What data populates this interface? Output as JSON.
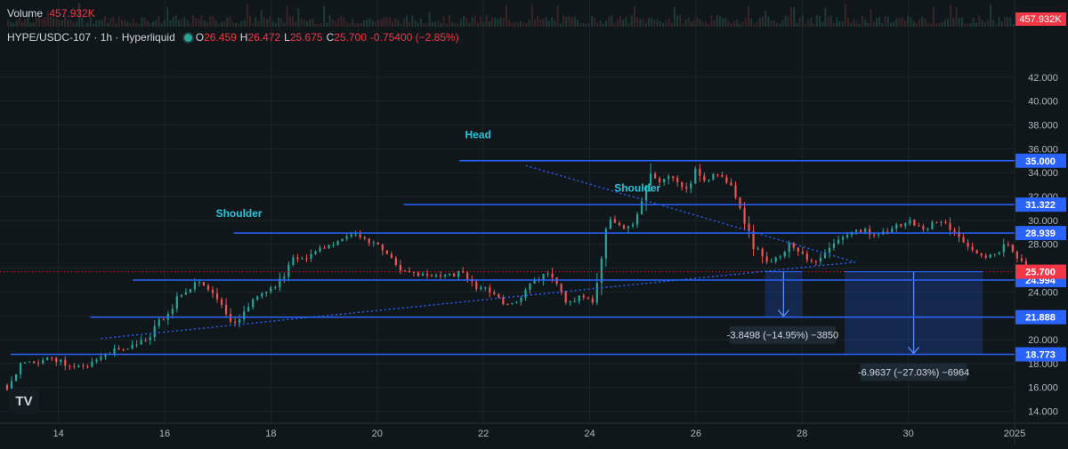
{
  "volume": {
    "label": "Volume",
    "value": "457.932K"
  },
  "symbol": {
    "title": "HYPE/USDC-107 · 1h · Hyperliquid",
    "open_label": "O",
    "open": "26.459",
    "high_label": "H",
    "high": "26.472",
    "low_label": "L",
    "low": "25.675",
    "close_label": "C",
    "close": "25.700",
    "change": "-0.75400 (−2.85%)"
  },
  "logo_text": "TV",
  "colors": {
    "background": "#0f171b",
    "up": "#26a69a",
    "down": "#ef5350",
    "level_line": "#2962ff",
    "annotation_text": "#26c6da",
    "last_price": "#f23645"
  },
  "chart_data": {
    "type": "candlestick",
    "x_ticks": [
      "14",
      "16",
      "18",
      "20",
      "22",
      "24",
      "26",
      "28",
      "30",
      "2025"
    ],
    "y_ticks": [
      "14.000",
      "16.000",
      "18.000",
      "20.000",
      "22.000",
      "24.000",
      "26.000",
      "28.000",
      "30.000",
      "32.000",
      "34.000",
      "36.000",
      "38.000",
      "40.000",
      "42.000"
    ],
    "ylim": [
      13,
      44
    ],
    "x_range_days": [
      12.9,
      32.0
    ],
    "year_tick": {
      "label": "2025",
      "day": 32
    },
    "last_price": "25.700",
    "volume_axis_label": "457.932K",
    "levels": [
      {
        "value": "35.000",
        "x_start_day": 21.55
      },
      {
        "value": "31.322",
        "x_start_day": 20.5
      },
      {
        "value": "28.939",
        "x_start_day": 17.3
      },
      {
        "value": "24.994",
        "x_start_day": 15.4
      },
      {
        "value": "21.888",
        "x_start_day": 14.6
      },
      {
        "value": "18.773",
        "x_start_day": 13.1
      }
    ],
    "annotations": [
      {
        "text": "Shoulder",
        "day": 17.4,
        "price": 30.3
      },
      {
        "text": "Head",
        "day": 21.9,
        "price": 36.9
      },
      {
        "text": "Shoulder",
        "day": 24.9,
        "price": 32.4
      }
    ],
    "trendlines": [
      {
        "from": {
          "day": 14.8,
          "price": 20.1
        },
        "to": {
          "day": 29.0,
          "price": 26.5
        }
      },
      {
        "from": {
          "day": 22.8,
          "price": 34.6
        },
        "to": {
          "day": 29.0,
          "price": 26.5
        }
      }
    ],
    "measures": [
      {
        "label": "-3.8498 (−14.95%) −3850",
        "from_day": 27.3,
        "to_day": 28.0,
        "from_price": 25.7,
        "to_price": 21.888
      },
      {
        "label": "-6.9637 (−27.03%) −6964",
        "from_day": 28.8,
        "to_day": 31.4,
        "from_price": 25.7,
        "to_price": 18.773
      }
    ],
    "price_path": [
      [
        12.95,
        16.2
      ],
      [
        13.05,
        16.0
      ],
      [
        13.2,
        17.4
      ],
      [
        13.35,
        18.1
      ],
      [
        13.6,
        18.2
      ],
      [
        13.9,
        18.4
      ],
      [
        14.15,
        18.0
      ],
      [
        14.4,
        17.7
      ],
      [
        14.6,
        18.0
      ],
      [
        14.8,
        18.4
      ],
      [
        14.95,
        18.9
      ],
      [
        15.1,
        19.2
      ],
      [
        15.3,
        19.3
      ],
      [
        15.5,
        19.8
      ],
      [
        15.7,
        20.0
      ],
      [
        15.8,
        21.4
      ],
      [
        16.0,
        21.6
      ],
      [
        16.2,
        23.2
      ],
      [
        16.45,
        24.3
      ],
      [
        16.6,
        24.7
      ],
      [
        16.8,
        24.5
      ],
      [
        17.0,
        23.0
      ],
      [
        17.2,
        21.7
      ],
      [
        17.35,
        21.3
      ],
      [
        17.55,
        22.9
      ],
      [
        17.75,
        23.5
      ],
      [
        17.95,
        24.3
      ],
      [
        18.15,
        24.8
      ],
      [
        18.4,
        26.7
      ],
      [
        18.7,
        27.0
      ],
      [
        19.0,
        27.8
      ],
      [
        19.3,
        28.4
      ],
      [
        19.6,
        28.9
      ],
      [
        19.9,
        28.0
      ],
      [
        20.15,
        27.5
      ],
      [
        20.4,
        26.0
      ],
      [
        20.6,
        25.5
      ],
      [
        20.85,
        25.4
      ],
      [
        21.1,
        25.3
      ],
      [
        21.4,
        25.4
      ],
      [
        21.6,
        25.6
      ],
      [
        21.85,
        24.5
      ],
      [
        22.05,
        24.3
      ],
      [
        22.25,
        23.5
      ],
      [
        22.45,
        22.8
      ],
      [
        22.7,
        23.3
      ],
      [
        22.9,
        24.6
      ],
      [
        23.15,
        25.6
      ],
      [
        23.4,
        24.6
      ],
      [
        23.6,
        23.0
      ],
      [
        23.8,
        23.7
      ],
      [
        23.95,
        23.6
      ],
      [
        24.05,
        23.2
      ],
      [
        24.15,
        25.5
      ],
      [
        24.25,
        27.0
      ],
      [
        24.35,
        29.8
      ],
      [
        24.5,
        30.0
      ],
      [
        24.65,
        29.2
      ],
      [
        24.85,
        30.0
      ],
      [
        25.0,
        31.5
      ],
      [
        25.15,
        34.3
      ],
      [
        25.3,
        33.3
      ],
      [
        25.5,
        34.0
      ],
      [
        25.65,
        33.0
      ],
      [
        25.8,
        32.2
      ],
      [
        26.0,
        34.2
      ],
      [
        26.2,
        33.2
      ],
      [
        26.4,
        34.0
      ],
      [
        26.55,
        33.5
      ],
      [
        26.7,
        32.5
      ],
      [
        26.85,
        31.2
      ],
      [
        26.95,
        29.5
      ],
      [
        27.1,
        27.8
      ],
      [
        27.25,
        27.0
      ],
      [
        27.4,
        26.3
      ],
      [
        27.6,
        27.2
      ],
      [
        27.8,
        28.0
      ],
      [
        28.0,
        27.0
      ],
      [
        28.2,
        26.5
      ],
      [
        28.4,
        27.3
      ],
      [
        28.6,
        28.4
      ],
      [
        28.8,
        28.8
      ],
      [
        29.0,
        29.1
      ],
      [
        29.2,
        29.2
      ],
      [
        29.4,
        28.8
      ],
      [
        29.6,
        29.2
      ],
      [
        29.8,
        29.5
      ],
      [
        30.0,
        30.0
      ],
      [
        30.15,
        29.6
      ],
      [
        30.35,
        29.3
      ],
      [
        30.5,
        29.8
      ],
      [
        30.7,
        29.7
      ],
      [
        30.9,
        28.9
      ],
      [
        31.1,
        27.9
      ],
      [
        31.3,
        27.2
      ],
      [
        31.5,
        27.0
      ],
      [
        31.7,
        27.6
      ],
      [
        31.85,
        28.3
      ],
      [
        32.0,
        27.4
      ],
      [
        32.1,
        26.6
      ],
      [
        32.2,
        26.1
      ],
      [
        32.3,
        25.7
      ]
    ]
  }
}
